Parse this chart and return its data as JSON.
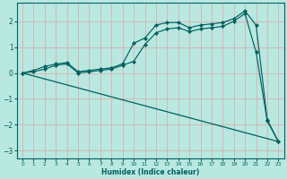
{
  "xlabel": "Humidex (Indice chaleur)",
  "background_color": "#b8e8e0",
  "grid_color": "#d8b0b0",
  "line_color": "#006060",
  "xlim": [
    -0.5,
    23.5
  ],
  "ylim": [
    -3.3,
    2.7
  ],
  "xticks": [
    0,
    1,
    2,
    3,
    4,
    5,
    6,
    7,
    8,
    9,
    10,
    11,
    12,
    13,
    14,
    15,
    16,
    17,
    18,
    19,
    20,
    21,
    22,
    23
  ],
  "yticks": [
    -3,
    -2,
    -1,
    0,
    1,
    2
  ],
  "lines": [
    {
      "x": [
        0,
        1,
        2,
        3,
        4,
        5,
        6,
        7,
        8,
        9,
        10,
        11,
        12,
        13,
        14,
        15,
        16,
        17,
        18,
        19,
        20,
        21,
        22,
        23
      ],
      "y": [
        0.0,
        0.1,
        0.25,
        0.35,
        0.4,
        0.05,
        0.1,
        0.15,
        0.2,
        0.35,
        1.15,
        1.35,
        1.85,
        1.95,
        1.95,
        1.75,
        1.85,
        1.9,
        1.95,
        2.1,
        2.4,
        1.85,
        -1.8,
        -2.65
      ]
    },
    {
      "x": [
        0,
        1,
        2,
        3,
        4,
        5,
        6,
        7,
        8,
        9,
        10,
        11,
        12,
        13,
        14,
        15,
        16,
        17,
        18,
        19,
        20,
        21,
        22,
        23
      ],
      "y": [
        0.0,
        0.05,
        0.15,
        0.3,
        0.35,
        0.0,
        0.05,
        0.1,
        0.15,
        0.3,
        0.45,
        1.1,
        1.55,
        1.7,
        1.75,
        1.6,
        1.7,
        1.75,
        1.8,
        2.0,
        2.3,
        0.8,
        -1.85,
        -2.65
      ]
    },
    {
      "x": [
        0,
        23
      ],
      "y": [
        0.0,
        -2.65
      ],
      "no_marker": true
    }
  ]
}
